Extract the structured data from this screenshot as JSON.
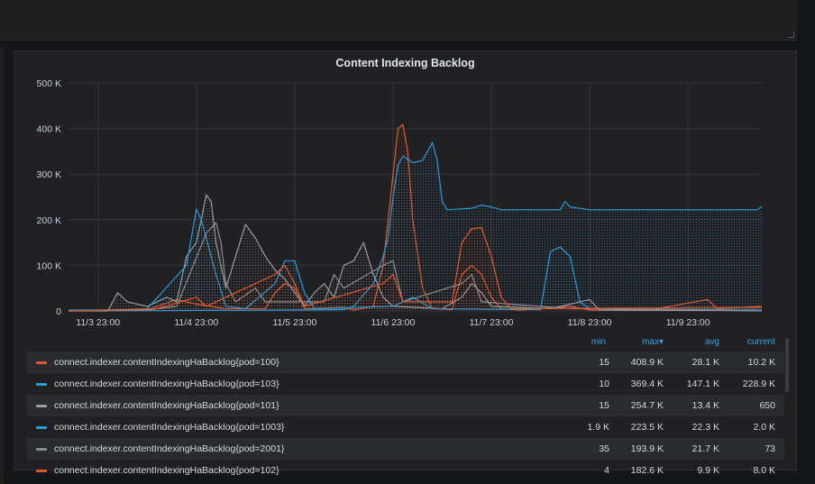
{
  "panel": {
    "title": "Content Indexing Backlog"
  },
  "legend": {
    "columns": [
      "min",
      "max▾",
      "avg",
      "current"
    ],
    "rows": [
      {
        "name": "connect.indexer.contentIndexingHaBacklog{pod=100}",
        "min": "15",
        "max": "408.9 K",
        "avg": "28.1 K",
        "current": "10.2 K",
        "color": "#e0592f"
      },
      {
        "name": "connect.indexer.contentIndexingHaBacklog{pod=103}",
        "min": "10",
        "max": "369.4 K",
        "avg": "147.1 K",
        "current": "228.9 K",
        "color": "#2b9bd4"
      },
      {
        "name": "connect.indexer.contentIndexingHaBacklog{pod=101}",
        "min": "15",
        "max": "254.7 K",
        "avg": "13.4 K",
        "current": "650",
        "color": "#9a9ca1"
      },
      {
        "name": "connect.indexer.contentIndexingHaBacklog{pod=1003}",
        "min": "1.9 K",
        "max": "223.5 K",
        "avg": "22.3 K",
        "current": "2.0 K",
        "color": "#2b9bd4"
      },
      {
        "name": "connect.indexer.contentIndexingHaBacklog{pod=2001}",
        "min": "35",
        "max": "193.9 K",
        "avg": "21.7 K",
        "current": "73",
        "color": "#8a8c90"
      },
      {
        "name": "connect.indexer.contentIndexingHaBacklog{pod=102}",
        "min": "4",
        "max": "182.6 K",
        "avg": "9.9 K",
        "current": "8.0 K",
        "color": "#e0592f"
      }
    ]
  },
  "chart_data": {
    "type": "line",
    "title": "Content Indexing Backlog",
    "xlabel": "",
    "ylabel": "",
    "x_tick_labels": [
      "11/3 23:00",
      "11/4 23:00",
      "11/5 23:00",
      "11/6 23:00",
      "11/7 23:00",
      "11/8 23:00",
      "11/9 23:00"
    ],
    "y_tick_labels": [
      "0",
      "100 K",
      "200 K",
      "300 K",
      "400 K",
      "500 K"
    ],
    "ylim": [
      0,
      500000
    ],
    "xlim_days": [
      -0.3,
      6.75
    ],
    "grid": true,
    "legend_placement": "bottom",
    "series": [
      {
        "name": "connect.indexer.contentIndexingHaBacklog{pod=100}",
        "color": "#e0592f",
        "points": [
          [
            -0.3,
            0
          ],
          [
            0.5,
            2000
          ],
          [
            0.6,
            10000
          ],
          [
            0.8,
            25000
          ],
          [
            1.0,
            15000
          ],
          [
            1.3,
            5000
          ],
          [
            1.7,
            5000
          ],
          [
            1.8,
            40000
          ],
          [
            1.9,
            60000
          ],
          [
            2.0,
            50000
          ],
          [
            2.1,
            5000
          ],
          [
            2.5,
            8000
          ],
          [
            2.6,
            2000
          ],
          [
            2.8,
            10000
          ],
          [
            2.9,
            100000
          ],
          [
            3.0,
            300000
          ],
          [
            3.05,
            400000
          ],
          [
            3.1,
            408900
          ],
          [
            3.15,
            350000
          ],
          [
            3.2,
            200000
          ],
          [
            3.3,
            50000
          ],
          [
            3.4,
            5000
          ],
          [
            3.6,
            3000
          ],
          [
            3.7,
            80000
          ],
          [
            3.8,
            100000
          ],
          [
            3.9,
            80000
          ],
          [
            4.0,
            30000
          ],
          [
            4.1,
            5000
          ],
          [
            4.3,
            2000
          ],
          [
            4.8,
            10000
          ],
          [
            5.0,
            2000
          ],
          [
            5.6,
            2000
          ],
          [
            6.2,
            25000
          ],
          [
            6.3,
            5000
          ],
          [
            6.75,
            10200
          ]
        ]
      },
      {
        "name": "connect.indexer.contentIndexingHaBacklog{pod=103}",
        "color": "#2b9bd4",
        "points": [
          [
            -0.3,
            0
          ],
          [
            2.0,
            2000
          ],
          [
            2.5,
            3000
          ],
          [
            2.6,
            10000
          ],
          [
            2.8,
            60000
          ],
          [
            2.9,
            120000
          ],
          [
            2.95,
            160000
          ],
          [
            3.0,
            250000
          ],
          [
            3.05,
            320000
          ],
          [
            3.1,
            340000
          ],
          [
            3.2,
            325000
          ],
          [
            3.3,
            330000
          ],
          [
            3.4,
            369400
          ],
          [
            3.45,
            330000
          ],
          [
            3.5,
            240000
          ],
          [
            3.55,
            222000
          ],
          [
            3.8,
            225000
          ],
          [
            3.9,
            232000
          ],
          [
            4.0,
            228000
          ],
          [
            4.1,
            222000
          ],
          [
            4.5,
            222000
          ],
          [
            4.7,
            222000
          ],
          [
            4.75,
            240000
          ],
          [
            4.8,
            228000
          ],
          [
            5.0,
            222000
          ],
          [
            5.5,
            222000
          ],
          [
            6.0,
            222000
          ],
          [
            6.5,
            222000
          ],
          [
            6.7,
            222000
          ],
          [
            6.75,
            228900
          ]
        ]
      },
      {
        "name": "connect.indexer.contentIndexingHaBacklog{pod=101}",
        "color": "#9a9ca1",
        "points": [
          [
            -0.3,
            0
          ],
          [
            0.1,
            0
          ],
          [
            0.2,
            40000
          ],
          [
            0.3,
            20000
          ],
          [
            0.5,
            10000
          ],
          [
            0.7,
            30000
          ],
          [
            0.8,
            20000
          ],
          [
            0.9,
            120000
          ],
          [
            1.0,
            150000
          ],
          [
            1.05,
            200000
          ],
          [
            1.1,
            254700
          ],
          [
            1.15,
            240000
          ],
          [
            1.2,
            150000
          ],
          [
            1.3,
            50000
          ],
          [
            1.4,
            120000
          ],
          [
            1.5,
            190000
          ],
          [
            1.6,
            160000
          ],
          [
            1.7,
            120000
          ],
          [
            1.8,
            90000
          ],
          [
            1.9,
            70000
          ],
          [
            2.0,
            40000
          ],
          [
            2.1,
            10000
          ],
          [
            2.2,
            40000
          ],
          [
            2.3,
            60000
          ],
          [
            2.4,
            30000
          ],
          [
            2.5,
            100000
          ],
          [
            2.6,
            110000
          ],
          [
            2.7,
            150000
          ],
          [
            2.8,
            80000
          ],
          [
            2.9,
            30000
          ],
          [
            3.0,
            10000
          ],
          [
            3.5,
            5000
          ],
          [
            3.7,
            30000
          ],
          [
            3.8,
            60000
          ],
          [
            3.9,
            40000
          ],
          [
            4.0,
            10000
          ],
          [
            4.6,
            5000
          ],
          [
            5.0,
            25000
          ],
          [
            5.1,
            2000
          ],
          [
            6.75,
            650
          ]
        ]
      },
      {
        "name": "connect.indexer.contentIndexingHaBacklog{pod=1003}",
        "color": "#2b9bd4",
        "points": [
          [
            -0.3,
            1900
          ],
          [
            0.2,
            2000
          ],
          [
            0.5,
            5000
          ],
          [
            0.9,
            100000
          ],
          [
            1.0,
            223500
          ],
          [
            1.05,
            200000
          ],
          [
            1.1,
            160000
          ],
          [
            1.2,
            80000
          ],
          [
            1.3,
            10000
          ],
          [
            1.5,
            5000
          ],
          [
            1.8,
            60000
          ],
          [
            1.9,
            110000
          ],
          [
            2.0,
            110000
          ],
          [
            2.1,
            40000
          ],
          [
            2.2,
            5000
          ],
          [
            3.0,
            10000
          ],
          [
            3.2,
            30000
          ],
          [
            3.4,
            5000
          ],
          [
            4.5,
            3000
          ],
          [
            4.6,
            130000
          ],
          [
            4.7,
            140000
          ],
          [
            4.8,
            120000
          ],
          [
            4.9,
            20000
          ],
          [
            5.0,
            5000
          ],
          [
            6.75,
            2000
          ]
        ]
      },
      {
        "name": "connect.indexer.contentIndexingHaBacklog{pod=2001}",
        "color": "#8a8c90",
        "points": [
          [
            -0.3,
            35
          ],
          [
            0.5,
            2000
          ],
          [
            0.8,
            10000
          ],
          [
            1.1,
            170000
          ],
          [
            1.2,
            193900
          ],
          [
            1.25,
            150000
          ],
          [
            1.3,
            60000
          ],
          [
            1.4,
            20000
          ],
          [
            1.6,
            50000
          ],
          [
            1.7,
            20000
          ],
          [
            2.3,
            20000
          ],
          [
            2.4,
            80000
          ],
          [
            2.5,
            50000
          ],
          [
            2.9,
            100000
          ],
          [
            3.0,
            110000
          ],
          [
            3.1,
            20000
          ],
          [
            3.7,
            60000
          ],
          [
            3.8,
            80000
          ],
          [
            3.9,
            20000
          ],
          [
            4.8,
            5000
          ],
          [
            5.1,
            5000
          ],
          [
            6.75,
            73
          ]
        ]
      },
      {
        "name": "connect.indexer.contentIndexingHaBacklog{pod=102}",
        "color": "#e0592f",
        "points": [
          [
            -0.3,
            4
          ],
          [
            0.6,
            5000
          ],
          [
            1.0,
            30000
          ],
          [
            1.1,
            10000
          ],
          [
            1.8,
            80000
          ],
          [
            1.9,
            100000
          ],
          [
            2.0,
            60000
          ],
          [
            2.1,
            10000
          ],
          [
            2.9,
            60000
          ],
          [
            3.0,
            80000
          ],
          [
            3.1,
            20000
          ],
          [
            3.6,
            20000
          ],
          [
            3.7,
            150000
          ],
          [
            3.8,
            180000
          ],
          [
            3.9,
            182600
          ],
          [
            4.0,
            120000
          ],
          [
            4.1,
            30000
          ],
          [
            4.2,
            5000
          ],
          [
            6.75,
            8000
          ]
        ]
      }
    ]
  }
}
